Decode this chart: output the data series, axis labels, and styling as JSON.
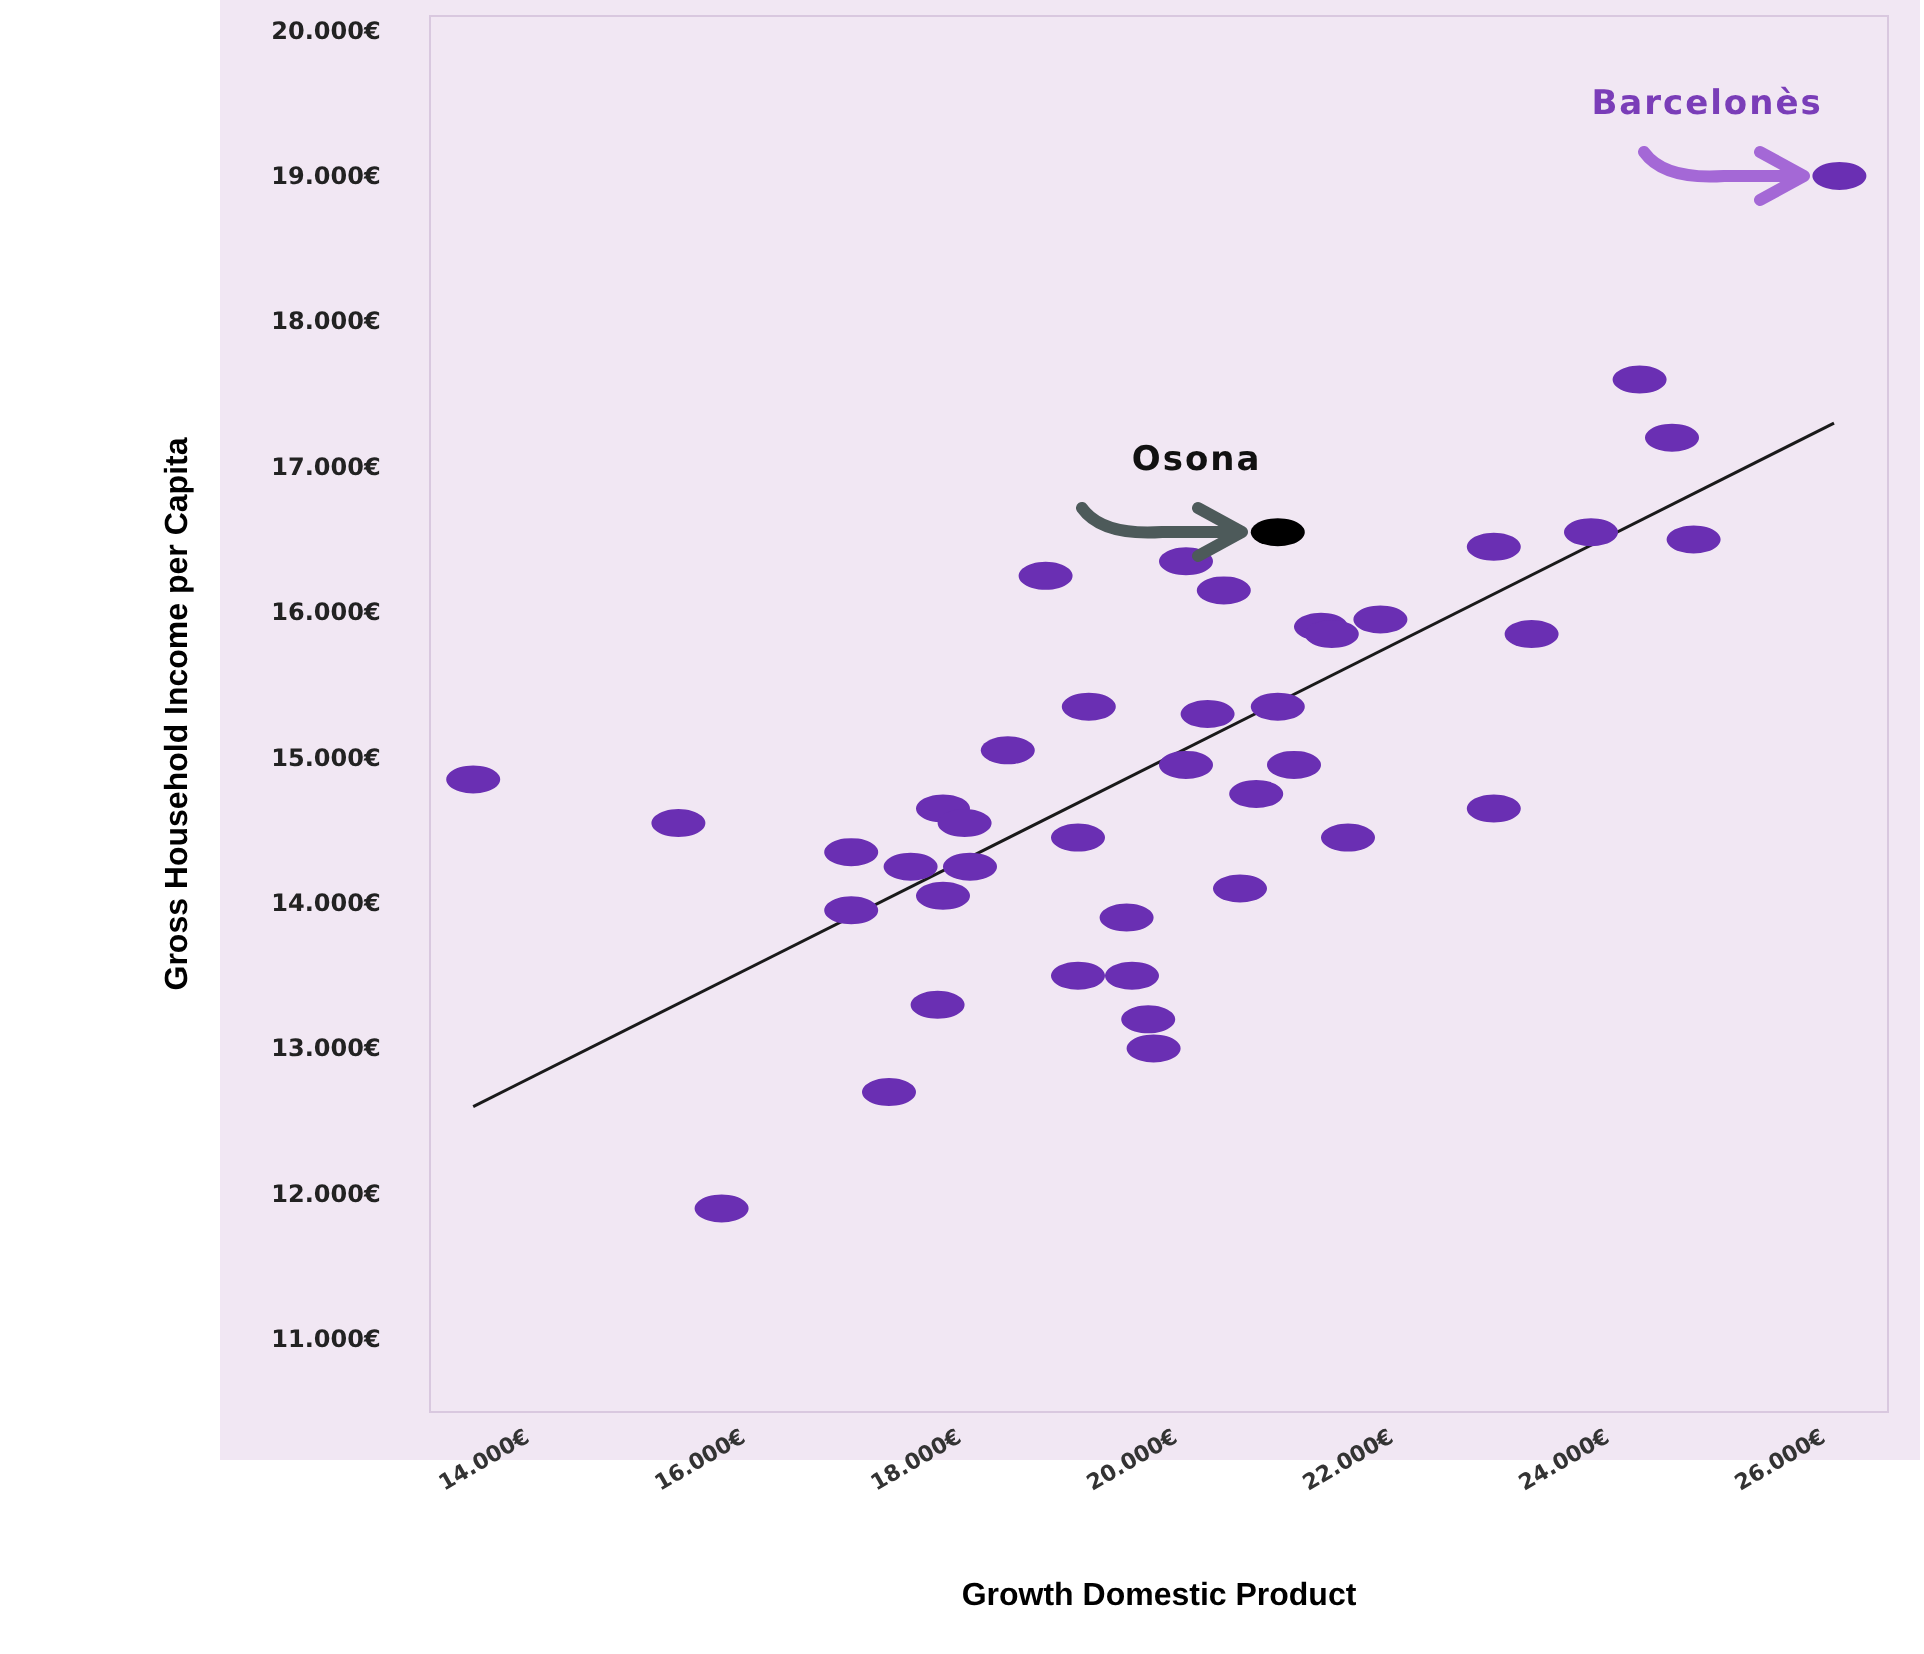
{
  "chart_data": {
    "type": "scatter",
    "xlabel": "Growth Domestic Product",
    "ylabel": "Gross Household Income per Capita",
    "xlim": [
      13500,
      27000
    ],
    "ylim": [
      10500,
      20100
    ],
    "xticks": [
      {
        "value": 14000,
        "label": "14.000€"
      },
      {
        "value": 16000,
        "label": "16.000€"
      },
      {
        "value": 18000,
        "label": "18.000€"
      },
      {
        "value": 20000,
        "label": "20.000€"
      },
      {
        "value": 22000,
        "label": "22.000€"
      },
      {
        "value": 24000,
        "label": "24.000€"
      },
      {
        "value": 26000,
        "label": "26.000€"
      }
    ],
    "yticks": [
      {
        "value": 11000,
        "label": "11.000€"
      },
      {
        "value": 12000,
        "label": "12.000€"
      },
      {
        "value": 13000,
        "label": "13.000€"
      },
      {
        "value": 14000,
        "label": "14.000€"
      },
      {
        "value": 15000,
        "label": "15.000€"
      },
      {
        "value": 16000,
        "label": "16.000€"
      },
      {
        "value": 17000,
        "label": "17.000€"
      },
      {
        "value": 18000,
        "label": "18.000€"
      },
      {
        "value": 19000,
        "label": "19.000€"
      },
      {
        "value": 20000,
        "label": "20.000€"
      }
    ],
    "grid": false,
    "marker": "circle",
    "series": [
      {
        "color": "#6a2fb3",
        "x": [
          13900,
          15800,
          16200,
          17400,
          17400,
          17750,
          17950,
          18200,
          18250,
          18450,
          18250,
          18500,
          18850,
          19200,
          19600,
          19500,
          19950,
          19500,
          20000,
          20150,
          20200,
          20500,
          20850,
          20700,
          20500,
          21350,
          21150,
          21500,
          21000,
          22000,
          21750,
          22300,
          21850,
          23350,
          23700,
          23350,
          24250,
          24700,
          25000,
          25200,
          26550
        ],
        "values": [
          14850,
          14550,
          11900,
          14350,
          13950,
          12700,
          14250,
          13300,
          14650,
          14550,
          14050,
          14250,
          15050,
          16250,
          15350,
          14450,
          13900,
          13500,
          13500,
          13200,
          13000,
          16350,
          16150,
          15300,
          14950,
          15350,
          14750,
          14950,
          14100,
          14450,
          15900,
          15950,
          15850,
          16450,
          15850,
          14650,
          16550,
          17600,
          17200,
          16500,
          19000
        ]
      },
      {
        "type": "scatter",
        "color": "#000000",
        "x": [
          21350
        ],
        "values": [
          16550
        ]
      },
      {
        "type": "line",
        "color": "#1a1a1a",
        "marker": "none",
        "line_style": "solid",
        "x": [
          13900,
          26500
        ],
        "values": [
          12600,
          17300
        ]
      }
    ],
    "annotations": [
      {
        "text": "Barcelonès",
        "x": 26550,
        "y": 19000
      },
      {
        "text": "Osona",
        "x": 21350,
        "y": 16550
      }
    ]
  }
}
